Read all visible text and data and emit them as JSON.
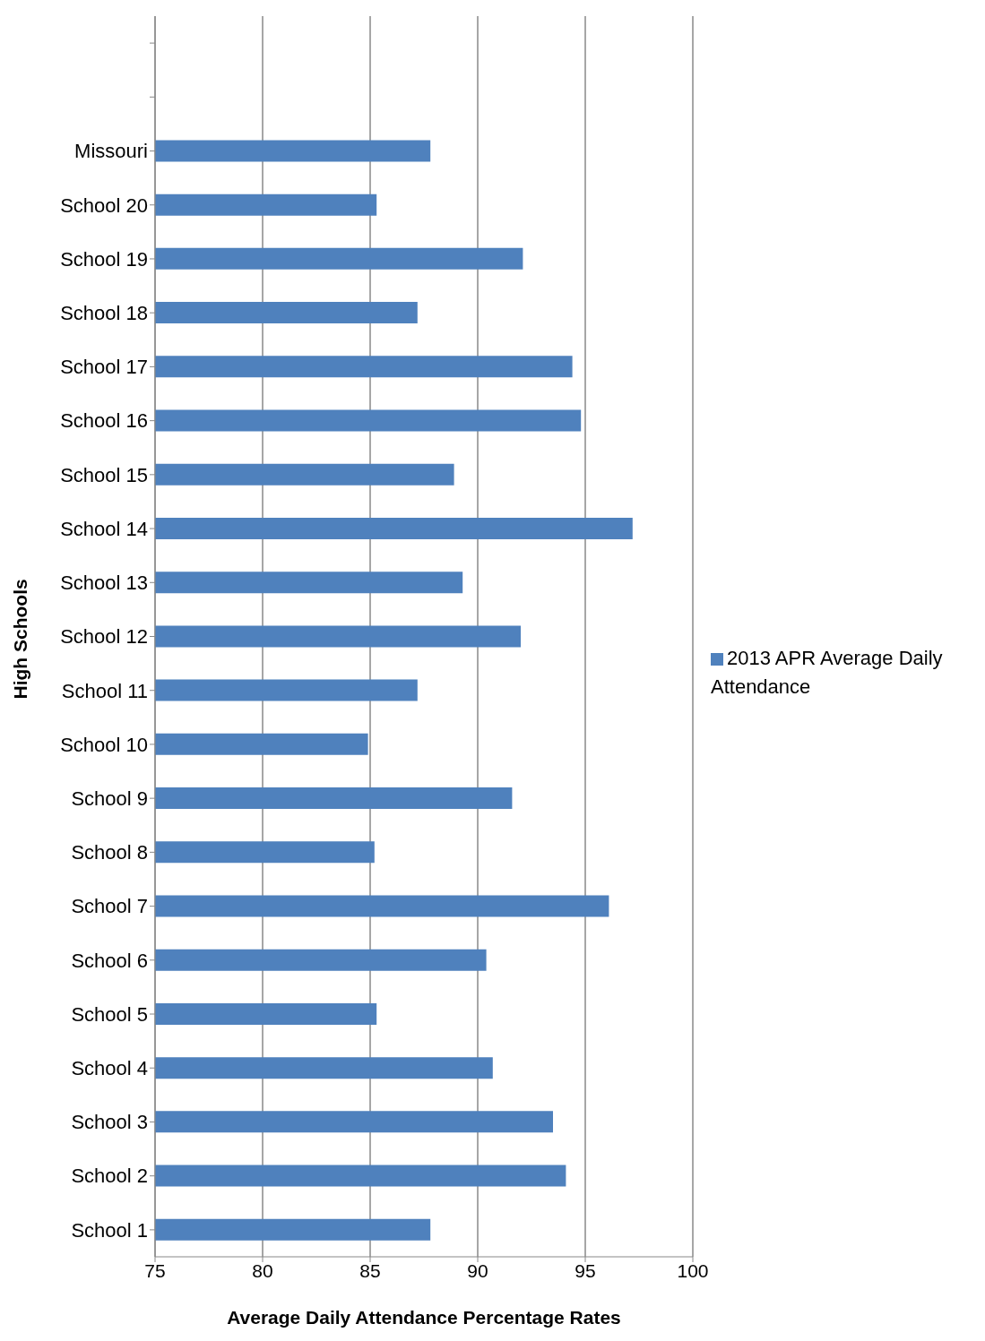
{
  "chart_data": {
    "type": "bar",
    "orientation": "horizontal",
    "xlabel": "Average Daily Attendance Percentage Rates",
    "ylabel": "High Schools",
    "categories": [
      null,
      null,
      "Missouri",
      "School 20",
      "School 19",
      "School 18",
      "School 17",
      "School 16",
      "School 15",
      "School 14",
      "School 13",
      "School 12",
      "School 11",
      "School 10",
      "School 9",
      "School 8",
      "School 7",
      "School 6",
      "School 5",
      "School 4",
      "School 3",
      "School 2",
      "School 1"
    ],
    "series": [
      {
        "name": "2013 APR Average Daily Attendance",
        "color": "#4f81bd",
        "values": [
          null,
          null,
          87.8,
          85.3,
          92.1,
          87.2,
          94.4,
          94.8,
          88.9,
          97.2,
          89.3,
          92.0,
          87.2,
          84.9,
          91.6,
          85.2,
          96.1,
          90.4,
          85.3,
          90.7,
          93.5,
          94.1,
          87.8
        ]
      }
    ],
    "xlim": [
      75,
      100
    ],
    "xticks": [
      75,
      80,
      85,
      90,
      95,
      100
    ],
    "grid": "x",
    "legend": "right"
  }
}
